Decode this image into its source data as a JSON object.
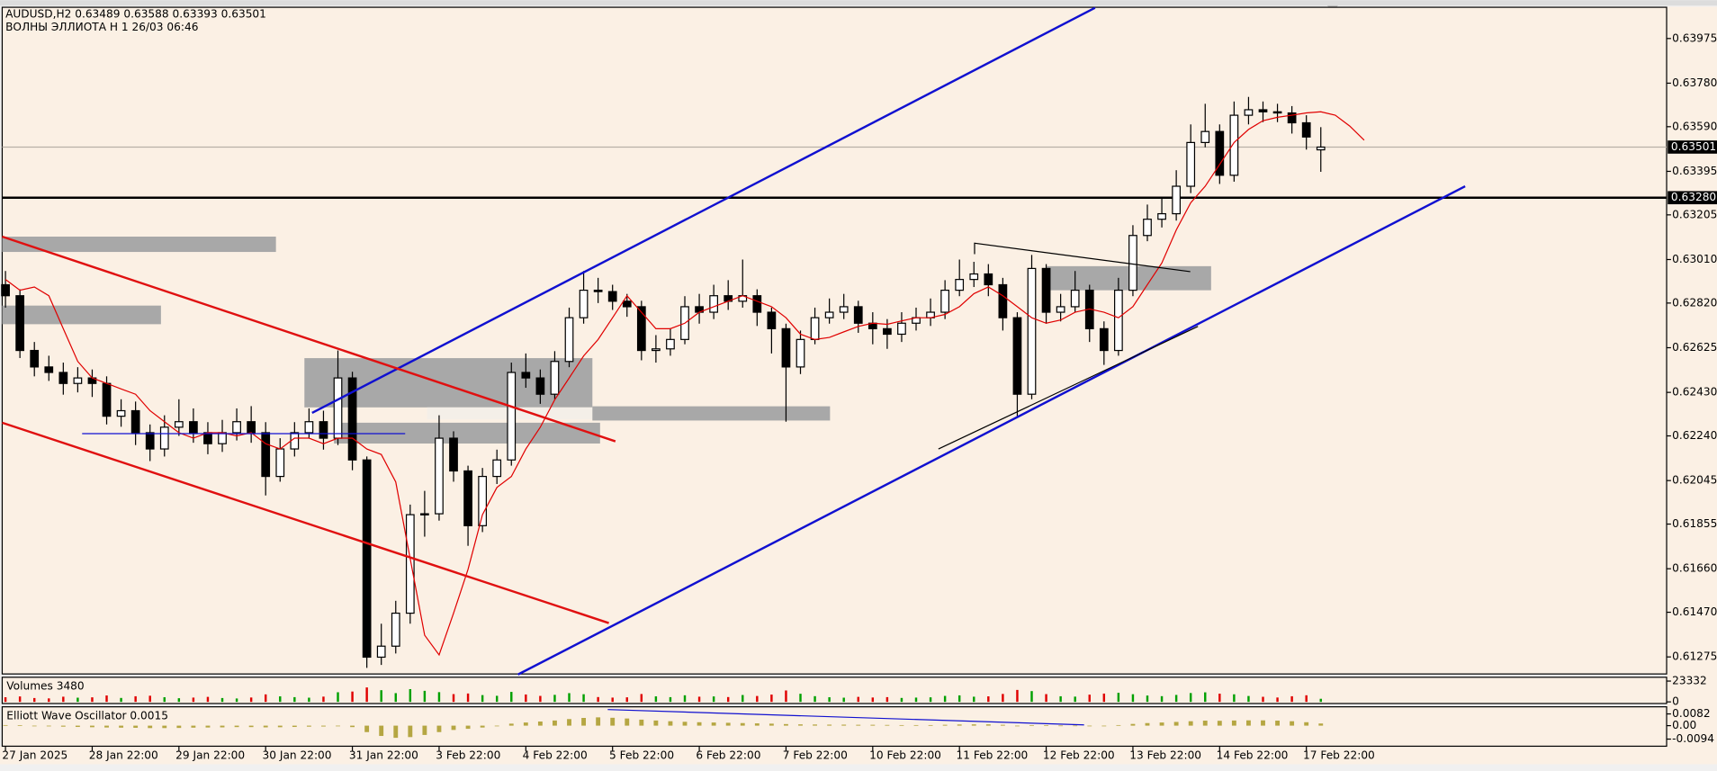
{
  "chart_data": {
    "type": "candlestick",
    "title": "AUDUSD,H2  0.63489 0.63588 0.63393 0.63501",
    "subtitle": "ВОЛНЫ ЭЛЛИОТА H 1 26/03 06:46",
    "up_color": "#ffffff",
    "down_color": "#000000",
    "ohlc": [
      [
        0.629,
        0.6296,
        0.628,
        0.62852
      ],
      [
        0.62852,
        0.6288,
        0.6258,
        0.62613
      ],
      [
        0.62613,
        0.6265,
        0.625,
        0.62541
      ],
      [
        0.62541,
        0.6259,
        0.6248,
        0.62517
      ],
      [
        0.62517,
        0.6256,
        0.6242,
        0.62469
      ],
      [
        0.62469,
        0.6254,
        0.6243,
        0.62493
      ],
      [
        0.62493,
        0.6253,
        0.6241,
        0.62469
      ],
      [
        0.62469,
        0.625,
        0.6229,
        0.62326
      ],
      [
        0.62326,
        0.624,
        0.6228,
        0.6235
      ],
      [
        0.6235,
        0.6239,
        0.622,
        0.62254
      ],
      [
        0.62254,
        0.6229,
        0.6213,
        0.62183
      ],
      [
        0.62183,
        0.6233,
        0.6215,
        0.62278
      ],
      [
        0.62278,
        0.624,
        0.6224,
        0.62302
      ],
      [
        0.62302,
        0.6236,
        0.6221,
        0.62254
      ],
      [
        0.62254,
        0.623,
        0.6216,
        0.62206
      ],
      [
        0.62206,
        0.6231,
        0.6217,
        0.62254
      ],
      [
        0.62254,
        0.6236,
        0.6222,
        0.62302
      ],
      [
        0.62302,
        0.6237,
        0.6221,
        0.62254
      ],
      [
        0.62254,
        0.623,
        0.6198,
        0.62063
      ],
      [
        0.62063,
        0.6223,
        0.6204,
        0.62183
      ],
      [
        0.62183,
        0.623,
        0.6215,
        0.62254
      ],
      [
        0.62254,
        0.6236,
        0.6223,
        0.62302
      ],
      [
        0.62302,
        0.6235,
        0.6218,
        0.6223
      ],
      [
        0.6223,
        0.62613,
        0.622,
        0.62493
      ],
      [
        0.62493,
        0.6252,
        0.6209,
        0.62135
      ],
      [
        0.62135,
        0.6215,
        0.61227,
        0.61274
      ],
      [
        0.61274,
        0.6142,
        0.6124,
        0.61322
      ],
      [
        0.61322,
        0.6152,
        0.6129,
        0.61466
      ],
      [
        0.61466,
        0.6194,
        0.6142,
        0.61896
      ],
      [
        0.61896,
        0.62,
        0.618,
        0.619
      ],
      [
        0.619,
        0.6233,
        0.6187,
        0.6223
      ],
      [
        0.6223,
        0.6226,
        0.6204,
        0.62087
      ],
      [
        0.62087,
        0.6211,
        0.6176,
        0.61848
      ],
      [
        0.61848,
        0.621,
        0.6182,
        0.62063
      ],
      [
        0.62063,
        0.6218,
        0.6203,
        0.62135
      ],
      [
        0.62135,
        0.6256,
        0.6211,
        0.62517
      ],
      [
        0.62517,
        0.626,
        0.6245,
        0.62493
      ],
      [
        0.62493,
        0.6253,
        0.6238,
        0.62422
      ],
      [
        0.62422,
        0.6261,
        0.624,
        0.62565
      ],
      [
        0.62565,
        0.628,
        0.6254,
        0.62756
      ],
      [
        0.62756,
        0.6296,
        0.6273,
        0.62876
      ],
      [
        0.62876,
        0.6293,
        0.6282,
        0.6287
      ],
      [
        0.6287,
        0.629,
        0.6279,
        0.62828
      ],
      [
        0.62828,
        0.6286,
        0.6276,
        0.62804
      ],
      [
        0.62804,
        0.6283,
        0.6257,
        0.62613
      ],
      [
        0.62613,
        0.6268,
        0.6256,
        0.6262
      ],
      [
        0.6262,
        0.6271,
        0.6259,
        0.62661
      ],
      [
        0.62661,
        0.6285,
        0.6264,
        0.62804
      ],
      [
        0.62804,
        0.6286,
        0.6273,
        0.6278
      ],
      [
        0.6278,
        0.629,
        0.6275,
        0.62852
      ],
      [
        0.62852,
        0.6292,
        0.6279,
        0.62828
      ],
      [
        0.62828,
        0.6301,
        0.628,
        0.62852
      ],
      [
        0.62852,
        0.6288,
        0.6272,
        0.6278
      ],
      [
        0.6278,
        0.628,
        0.626,
        0.62708
      ],
      [
        0.62708,
        0.6273,
        0.62302,
        0.62541
      ],
      [
        0.62541,
        0.627,
        0.6251,
        0.62661
      ],
      [
        0.62661,
        0.628,
        0.6264,
        0.62756
      ],
      [
        0.62756,
        0.6284,
        0.6273,
        0.6278
      ],
      [
        0.6278,
        0.6286,
        0.6275,
        0.62804
      ],
      [
        0.62804,
        0.6283,
        0.6269,
        0.62732
      ],
      [
        0.62732,
        0.6278,
        0.6264,
        0.62708
      ],
      [
        0.62708,
        0.6275,
        0.6262,
        0.62684
      ],
      [
        0.62684,
        0.6278,
        0.6265,
        0.62732
      ],
      [
        0.62732,
        0.628,
        0.627,
        0.62756
      ],
      [
        0.62756,
        0.6284,
        0.6272,
        0.6278
      ],
      [
        0.6278,
        0.6292,
        0.6275,
        0.62876
      ],
      [
        0.62876,
        0.6301,
        0.6285,
        0.62923
      ],
      [
        0.62923,
        0.63,
        0.6289,
        0.62947
      ],
      [
        0.62947,
        0.6299,
        0.6285,
        0.629
      ],
      [
        0.629,
        0.6293,
        0.627,
        0.62756
      ],
      [
        0.62756,
        0.6278,
        0.62326,
        0.62422
      ],
      [
        0.62422,
        0.6303,
        0.624,
        0.62971
      ],
      [
        0.62971,
        0.6299,
        0.6273,
        0.6278
      ],
      [
        0.6278,
        0.6286,
        0.6274,
        0.62804
      ],
      [
        0.62804,
        0.6296,
        0.6278,
        0.62876
      ],
      [
        0.62876,
        0.629,
        0.6265,
        0.62708
      ],
      [
        0.62708,
        0.6274,
        0.6255,
        0.62613
      ],
      [
        0.62613,
        0.6293,
        0.6259,
        0.62876
      ],
      [
        0.62876,
        0.6316,
        0.6285,
        0.63115
      ],
      [
        0.63115,
        0.6325,
        0.6309,
        0.63186
      ],
      [
        0.63186,
        0.6328,
        0.6315,
        0.6321
      ],
      [
        0.6321,
        0.634,
        0.6318,
        0.6333
      ],
      [
        0.6333,
        0.636,
        0.633,
        0.63521
      ],
      [
        0.63521,
        0.6369,
        0.635,
        0.63569
      ],
      [
        0.63569,
        0.636,
        0.6334,
        0.63378
      ],
      [
        0.63378,
        0.637,
        0.6335,
        0.6364
      ],
      [
        0.6364,
        0.6372,
        0.636,
        0.63664
      ],
      [
        0.63664,
        0.637,
        0.6361,
        0.63655
      ],
      [
        0.63655,
        0.6369,
        0.6361,
        0.6365
      ],
      [
        0.6365,
        0.6368,
        0.6356,
        0.63607
      ],
      [
        0.63607,
        0.6364,
        0.6349,
        0.63545
      ],
      [
        0.63489,
        0.63588,
        0.63393,
        0.63501
      ]
    ],
    "ma": {
      "color": "#e00000",
      "values": [
        0.62923,
        0.62876,
        0.6289,
        0.62852,
        0.62708,
        0.62565,
        0.62493,
        0.62469,
        0.62445,
        0.62422,
        0.6235,
        0.62302,
        0.62254,
        0.6223,
        0.62254,
        0.62254,
        0.6224,
        0.62254,
        0.62206,
        0.62183,
        0.6223,
        0.6223,
        0.62206,
        0.6223,
        0.6223,
        0.62183,
        0.62159,
        0.62039,
        0.61704,
        0.6137,
        0.61284,
        0.61466,
        0.61657,
        0.61896,
        0.62015,
        0.62063,
        0.62183,
        0.62278,
        0.62398,
        0.62493,
        0.62589,
        0.62661,
        0.62756,
        0.62852,
        0.6278,
        0.62708,
        0.62708,
        0.62732,
        0.6278,
        0.62804,
        0.62828,
        0.62852,
        0.62828,
        0.62804,
        0.62756,
        0.62684,
        0.62661,
        0.6267,
        0.62694,
        0.62718,
        0.62732,
        0.62727,
        0.62742,
        0.62756,
        0.62756,
        0.6277,
        0.62804,
        0.62861,
        0.6289,
        0.62852,
        0.62804,
        0.62756,
        0.62732,
        0.62746,
        0.6278,
        0.62794,
        0.6278,
        0.62756,
        0.62804,
        0.629,
        0.62995,
        0.63139,
        0.63258,
        0.6333,
        0.63425,
        0.63521,
        0.63578,
        0.63616,
        0.63631,
        0.6364,
        0.6365,
        0.63655,
        0.6364,
        0.63593,
        0.63531
      ]
    },
    "ylim": [
      0.61203,
      0.64109
    ],
    "yticks": [
      0.63975,
      {
        "value": 0.6378,
        "label": "0.63780"
      },
      {
        "value": 0.6359,
        "label": "0.63590"
      },
      0.63395,
      0.63205,
      {
        "value": 0.6301,
        "label": "0.63010"
      },
      {
        "value": 0.6282,
        "label": "0.62820"
      },
      0.62625,
      {
        "value": 0.6243,
        "label": "0.62430"
      },
      {
        "value": 0.6224,
        "label": "0.62240"
      },
      0.62045,
      0.61855,
      {
        "value": 0.6166,
        "label": "0.61660"
      },
      {
        "value": 0.6147,
        "label": "0.61470"
      },
      0.61275
    ],
    "price_line": {
      "value": 0.63501,
      "label": "0.63501"
    },
    "level_line": {
      "value": 0.6328,
      "label": "0.63280"
    },
    "xticks": [
      {
        "value": 0,
        "label": "27 Jan 2025"
      },
      {
        "value": 6,
        "label": "28 Jan 22:00"
      },
      {
        "value": 12,
        "label": "29 Jan 22:00"
      },
      {
        "value": 18,
        "label": "30 Jan 22:00"
      },
      {
        "value": 24,
        "label": "31 Jan 22:00"
      },
      {
        "value": 30,
        "label": "3 Feb 22:00"
      },
      {
        "value": 36,
        "label": "4 Feb 22:00"
      },
      {
        "value": 42,
        "label": "5 Feb 22:00"
      },
      {
        "value": 48,
        "label": "6 Feb 22:00"
      },
      {
        "value": 54,
        "label": "7 Feb 22:00"
      },
      {
        "value": 60,
        "label": "10 Feb 22:00"
      },
      {
        "value": 66,
        "label": "11 Feb 22:00"
      },
      {
        "value": 72,
        "label": "12 Feb 22:00"
      },
      {
        "value": 78,
        "label": "13 Feb 22:00"
      },
      {
        "value": 84,
        "label": "14 Feb 22:00"
      },
      {
        "value": 90,
        "label": "17 Feb 22:00"
      }
    ],
    "volumes": {
      "title": "Volumes 3480",
      "up_color": "#00a000",
      "down_color": "#e00000",
      "ylim": [
        0,
        23332
      ],
      "yticks": [
        23332,
        0
      ],
      "values": [
        5200,
        6100,
        4300,
        3900,
        5800,
        4700,
        5100,
        7200,
        4400,
        6300,
        6900,
        5200,
        4100,
        4800,
        5600,
        4300,
        3800,
        4900,
        8400,
        6200,
        5300,
        4700,
        5900,
        10800,
        11600,
        16200,
        13100,
        9800,
        14300,
        12400,
        10900,
        8700,
        9400,
        7600,
        6800,
        11200,
        8300,
        6700,
        7900,
        9800,
        8600,
        5400,
        4800,
        5100,
        8800,
        6200,
        5300,
        7400,
        5800,
        6100,
        5400,
        7700,
        6600,
        8200,
        12800,
        9100,
        6400,
        5200,
        4700,
        5600,
        4900,
        5300,
        4400,
        4800,
        5100,
        6700,
        7300,
        5800,
        6200,
        8900,
        13400,
        12100,
        8700,
        6300,
        5900,
        8100,
        9300,
        10200,
        8600,
        7100,
        6400,
        7800,
        9900,
        10700,
        9200,
        8500,
        6600,
        5700,
        4900,
        6300,
        7400,
        3480
      ]
    },
    "oscillator": {
      "title": "Elliott Wave Oscillator 0.0015",
      "color": "#b5a642",
      "ylim": [
        -0.0094,
        0.0082
      ],
      "yticks": [
        0.0082,
        {
          "value": 0,
          "label": "0.00"
        },
        -0.0094
      ],
      "values": [
        0.0004,
        0.0002,
        -0.0002,
        -0.0005,
        -0.0007,
        -0.0009,
        -0.0011,
        -0.0013,
        -0.0014,
        -0.0015,
        -0.0017,
        -0.0017,
        -0.0016,
        -0.0014,
        -0.0013,
        -0.0012,
        -0.001,
        -0.001,
        -0.0012,
        -0.0011,
        -0.0009,
        -0.0007,
        -0.0006,
        -0.0003,
        -0.001,
        -0.0045,
        -0.0072,
        -0.0085,
        -0.008,
        -0.0065,
        -0.0045,
        -0.003,
        -0.0022,
        -0.0013,
        -0.0004,
        0.0014,
        0.0022,
        0.0029,
        0.0036,
        0.0046,
        0.0054,
        0.0058,
        0.0055,
        0.005,
        0.0042,
        0.0036,
        0.0031,
        0.0027,
        0.0024,
        0.0022,
        0.002,
        0.0018,
        0.0016,
        0.0014,
        0.0011,
        0.0009,
        0.0008,
        0.0007,
        0.0007,
        0.0006,
        0.0006,
        0.0005,
        0.0004,
        0.0004,
        0.0004,
        0.0006,
        0.0008,
        0.0009,
        0.0009,
        0.0006,
        -0.0002,
        0.0002,
        0.0002,
        0.0001,
        0.0001,
        -0.0002,
        -0.0004,
        0.0004,
        0.0012,
        0.0018,
        0.0022,
        0.0026,
        0.0031,
        0.0035,
        0.0034,
        0.0036,
        0.0037,
        0.0037,
        0.0035,
        0.0031,
        0.0024,
        0.0015
      ]
    }
  }
}
